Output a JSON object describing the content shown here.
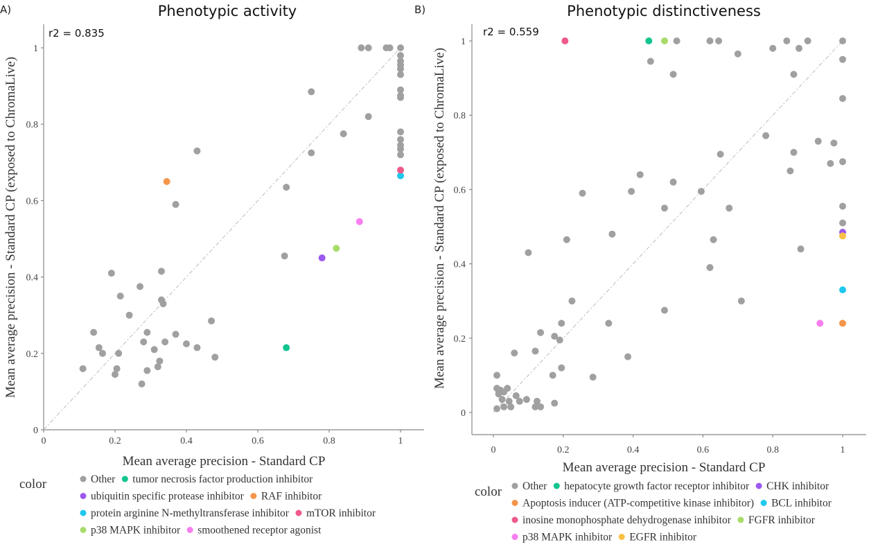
{
  "chart_data": [
    {
      "type": "scatter",
      "panel_label": "A)",
      "title": "Phenotypic activity",
      "annotation": "r2 = 0.835",
      "xlabel": "Mean average precision - Standard CP",
      "ylabel": "Mean average precision - Standard CP (exposed to ChromaLive)",
      "xlim": [
        0,
        1.06
      ],
      "ylim": [
        0,
        1.06
      ],
      "xticks": [
        "0",
        "0.2",
        "0.4",
        "0.6",
        "0.8",
        "1"
      ],
      "yticks": [
        "0",
        "0.2",
        "0.4",
        "0.6",
        "0.8",
        "1"
      ],
      "grid": false,
      "reference_line": "y = x",
      "legend_title": "color",
      "legend_placement": "bottom",
      "legend": [
        {
          "name": "Other",
          "color": "#a0a0a0"
        },
        {
          "name": "tumor necrosis factor production inhibitor",
          "color": "#12c48f"
        },
        {
          "name": "ubiquitin specific protease inhibitor",
          "color": "#9b59ef"
        },
        {
          "name": "RAF inhibitor",
          "color": "#f5954a"
        },
        {
          "name": "protein arginine N-methyltransferase inhibitor",
          "color": "#1ec8ee"
        },
        {
          "name": "mTOR inhibitor",
          "color": "#ef5a8a"
        },
        {
          "name": "p38 MAPK inhibitor",
          "color": "#a8dc6a"
        },
        {
          "name": "smoothened receptor agonist",
          "color": "#f77fef"
        }
      ],
      "legend_rows": [
        [
          0,
          1
        ],
        [
          2,
          3
        ],
        [
          4,
          5
        ],
        [
          6,
          7
        ]
      ],
      "series": [
        {
          "name": "Other",
          "points": [
            [
              0.89,
              1.0
            ],
            [
              0.91,
              1.0
            ],
            [
              0.96,
              1.0
            ],
            [
              0.97,
              1.0
            ],
            [
              1.0,
              1.0
            ],
            [
              1.0,
              0.98
            ],
            [
              1.0,
              0.965
            ],
            [
              1.0,
              0.955
            ],
            [
              1.0,
              0.945
            ],
            [
              1.0,
              0.93
            ],
            [
              1.0,
              0.89
            ],
            [
              1.0,
              0.875
            ],
            [
              1.0,
              0.87
            ],
            [
              1.0,
              0.78
            ],
            [
              1.0,
              0.76
            ],
            [
              1.0,
              0.745
            ],
            [
              1.0,
              0.735
            ],
            [
              1.0,
              0.72
            ],
            [
              0.75,
              0.885
            ],
            [
              0.91,
              0.82
            ],
            [
              0.84,
              0.775
            ],
            [
              0.75,
              0.725
            ],
            [
              0.43,
              0.73
            ],
            [
              0.37,
              0.59
            ],
            [
              0.68,
              0.635
            ],
            [
              0.675,
              0.455
            ],
            [
              0.19,
              0.41
            ],
            [
              0.33,
              0.415
            ],
            [
              0.215,
              0.35
            ],
            [
              0.27,
              0.375
            ],
            [
              0.33,
              0.34
            ],
            [
              0.335,
              0.33
            ],
            [
              0.24,
              0.3
            ],
            [
              0.14,
              0.255
            ],
            [
              0.155,
              0.215
            ],
            [
              0.165,
              0.2
            ],
            [
              0.21,
              0.2
            ],
            [
              0.28,
              0.23
            ],
            [
              0.29,
              0.255
            ],
            [
              0.31,
              0.21
            ],
            [
              0.34,
              0.23
            ],
            [
              0.37,
              0.25
            ],
            [
              0.4,
              0.225
            ],
            [
              0.43,
              0.215
            ],
            [
              0.47,
              0.285
            ],
            [
              0.48,
              0.19
            ],
            [
              0.11,
              0.16
            ],
            [
              0.205,
              0.16
            ],
            [
              0.2,
              0.145
            ],
            [
              0.29,
              0.155
            ],
            [
              0.32,
              0.165
            ],
            [
              0.325,
              0.18
            ],
            [
              0.275,
              0.12
            ]
          ]
        },
        {
          "name": "tumor necrosis factor production inhibitor",
          "points": [
            [
              0.68,
              0.215
            ]
          ]
        },
        {
          "name": "ubiquitin specific protease inhibitor",
          "points": [
            [
              0.78,
              0.45
            ]
          ]
        },
        {
          "name": "RAF inhibitor",
          "points": [
            [
              0.345,
              0.65
            ]
          ]
        },
        {
          "name": "protein arginine N-methyltransferase inhibitor",
          "points": [
            [
              1.0,
              0.665
            ]
          ]
        },
        {
          "name": "mTOR inhibitor",
          "points": [
            [
              1.0,
              0.68
            ]
          ]
        },
        {
          "name": "p38 MAPK inhibitor",
          "points": [
            [
              0.82,
              0.475
            ]
          ]
        },
        {
          "name": "smoothened receptor agonist",
          "points": [
            [
              0.885,
              0.545
            ]
          ]
        }
      ]
    },
    {
      "type": "scatter",
      "panel_label": "B)",
      "title": "Phenotypic distinctiveness",
      "annotation": "r2 = 0.559",
      "xlabel": "Mean average precision - Standard CP",
      "ylabel": "Mean average precision - Standard CP (exposed to ChromaLive)",
      "xlim": [
        -0.06,
        1.06
      ],
      "ylim": [
        -0.06,
        1.06
      ],
      "xticks": [
        "0",
        "0.2",
        "0.4",
        "0.6",
        "0.8",
        "1"
      ],
      "yticks": [
        "0",
        "0.2",
        "0.4",
        "0.6",
        "0.8",
        "1"
      ],
      "grid": false,
      "reference_line": "y = x",
      "legend_title": "color",
      "legend_placement": "bottom",
      "legend": [
        {
          "name": "Other",
          "color": "#a0a0a0"
        },
        {
          "name": "hepatocyte growth factor receptor inhibitor",
          "color": "#12c48f"
        },
        {
          "name": "CHK inhibitor",
          "color": "#9b59ef"
        },
        {
          "name": "Apoptosis inducer (ATP-competitive kinase inhibitor)",
          "color": "#f5954a"
        },
        {
          "name": "BCL inhibitor",
          "color": "#1ec8ee"
        },
        {
          "name": "inosine monophosphate dehydrogenase inhibitor",
          "color": "#ef5a8a"
        },
        {
          "name": "FGFR inhibitor",
          "color": "#a8dc6a"
        },
        {
          "name": "p38 MAPK inhibitor",
          "color": "#f77fef"
        },
        {
          "name": "EGFR inhibitor",
          "color": "#fbbf45"
        }
      ],
      "legend_rows": [
        [
          0,
          1,
          2
        ],
        [
          3,
          4
        ],
        [
          5,
          6
        ],
        [
          7,
          8
        ]
      ],
      "series": [
        {
          "name": "Other",
          "points": [
            [
              0.525,
              1.0
            ],
            [
              0.62,
              1.0
            ],
            [
              0.645,
              1.0
            ],
            [
              0.84,
              1.0
            ],
            [
              0.9,
              1.0
            ],
            [
              1.0,
              1.0
            ],
            [
              0.45,
              0.945
            ],
            [
              0.7,
              0.965
            ],
            [
              0.8,
              0.98
            ],
            [
              0.875,
              0.98
            ],
            [
              0.515,
              0.91
            ],
            [
              0.86,
              0.91
            ],
            [
              1.0,
              0.95
            ],
            [
              1.0,
              0.845
            ],
            [
              0.78,
              0.745
            ],
            [
              0.93,
              0.73
            ],
            [
              0.975,
              0.725
            ],
            [
              0.86,
              0.7
            ],
            [
              0.965,
              0.67
            ],
            [
              0.85,
              0.65
            ],
            [
              1.0,
              0.675
            ],
            [
              0.65,
              0.695
            ],
            [
              0.42,
              0.64
            ],
            [
              0.255,
              0.59
            ],
            [
              0.395,
              0.595
            ],
            [
              0.515,
              0.62
            ],
            [
              0.595,
              0.595
            ],
            [
              0.49,
              0.55
            ],
            [
              0.675,
              0.55
            ],
            [
              1.0,
              0.555
            ],
            [
              1.0,
              0.51
            ],
            [
              0.34,
              0.48
            ],
            [
              0.21,
              0.465
            ],
            [
              0.63,
              0.465
            ],
            [
              0.88,
              0.44
            ],
            [
              0.1,
              0.43
            ],
            [
              0.62,
              0.39
            ],
            [
              0.225,
              0.3
            ],
            [
              0.71,
              0.3
            ],
            [
              0.49,
              0.275
            ],
            [
              0.33,
              0.24
            ],
            [
              0.195,
              0.24
            ],
            [
              0.135,
              0.215
            ],
            [
              0.175,
              0.205
            ],
            [
              0.19,
              0.195
            ],
            [
              0.12,
              0.165
            ],
            [
              0.06,
              0.16
            ],
            [
              0.385,
              0.15
            ],
            [
              0.285,
              0.095
            ],
            [
              0.195,
              0.12
            ],
            [
              0.17,
              0.1
            ],
            [
              0.01,
              0.1
            ],
            [
              0.01,
              0.065
            ],
            [
              0.02,
              0.06
            ],
            [
              0.04,
              0.065
            ],
            [
              0.03,
              0.055
            ],
            [
              0.015,
              0.05
            ],
            [
              0.065,
              0.045
            ],
            [
              0.095,
              0.035
            ],
            [
              0.075,
              0.03
            ],
            [
              0.025,
              0.035
            ],
            [
              0.045,
              0.03
            ],
            [
              0.125,
              0.03
            ],
            [
              0.175,
              0.025
            ],
            [
              0.01,
              0.01
            ],
            [
              0.03,
              0.015
            ],
            [
              0.05,
              0.015
            ],
            [
              0.12,
              0.015
            ],
            [
              0.135,
              0.015
            ]
          ]
        },
        {
          "name": "hepatocyte growth factor receptor inhibitor",
          "points": [
            [
              0.445,
              1.0
            ]
          ]
        },
        {
          "name": "CHK inhibitor",
          "points": [
            [
              1.0,
              0.485
            ]
          ]
        },
        {
          "name": "Apoptosis inducer (ATP-competitive kinase inhibitor)",
          "points": [
            [
              1.0,
              0.24
            ]
          ]
        },
        {
          "name": "BCL inhibitor",
          "points": [
            [
              1.0,
              0.33
            ]
          ]
        },
        {
          "name": "inosine monophosphate dehydrogenase inhibitor",
          "points": [
            [
              0.205,
              1.0
            ]
          ]
        },
        {
          "name": "FGFR inhibitor",
          "points": [
            [
              0.49,
              1.0
            ]
          ]
        },
        {
          "name": "p38 MAPK inhibitor",
          "points": [
            [
              0.935,
              0.24
            ]
          ]
        },
        {
          "name": "EGFR inhibitor",
          "points": [
            [
              1.0,
              0.475
            ]
          ]
        }
      ]
    }
  ]
}
